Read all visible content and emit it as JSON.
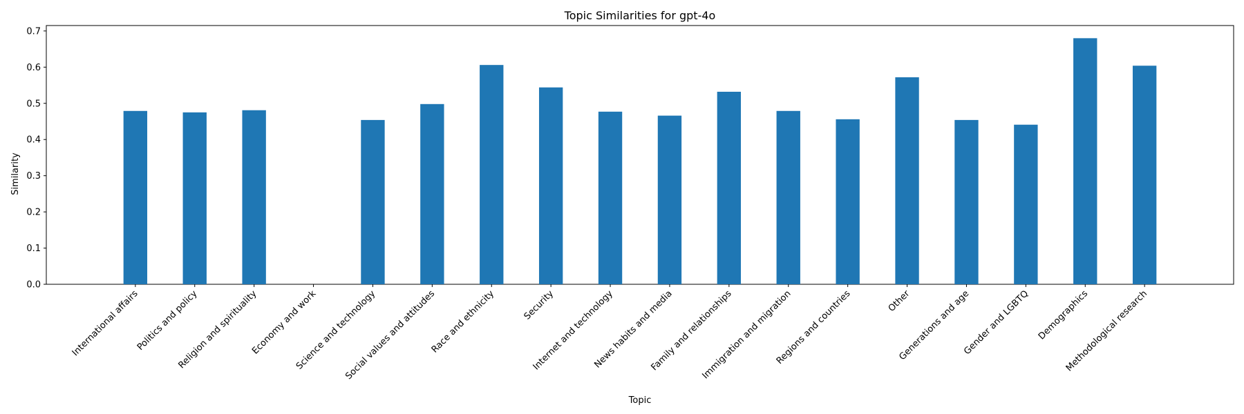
{
  "chart_data": {
    "type": "bar",
    "title": "Topic Similarities for gpt-4o",
    "xlabel": "Topic",
    "ylabel": "Similarity",
    "ylim": [
      0,
      0.715
    ],
    "yticks": [
      0.0,
      0.1,
      0.2,
      0.3,
      0.4,
      0.5,
      0.6,
      0.7
    ],
    "ytick_labels": [
      "0.0",
      "0.1",
      "0.2",
      "0.3",
      "0.4",
      "0.5",
      "0.6",
      "0.7"
    ],
    "grid": false,
    "bar_color": "#1f77b4",
    "categories": [
      "International affairs",
      "Politics and policy",
      "Religion and spirituality",
      "Economy and work",
      "Science and technology",
      "Social values and attitudes",
      "Race and ethnicity",
      "Security",
      "Internet and technology",
      "News habits and media",
      "Family and relationships",
      "Immigration and migration",
      "Regions and countries",
      "Other",
      "Generations and age",
      "Gender and LGBTQ",
      "Demographics",
      "Methodological research"
    ],
    "values": [
      0.479,
      0.475,
      0.481,
      0.0,
      0.454,
      0.498,
      0.606,
      0.544,
      0.477,
      0.466,
      0.532,
      0.479,
      0.456,
      0.572,
      0.454,
      0.441,
      0.68,
      0.604
    ]
  }
}
